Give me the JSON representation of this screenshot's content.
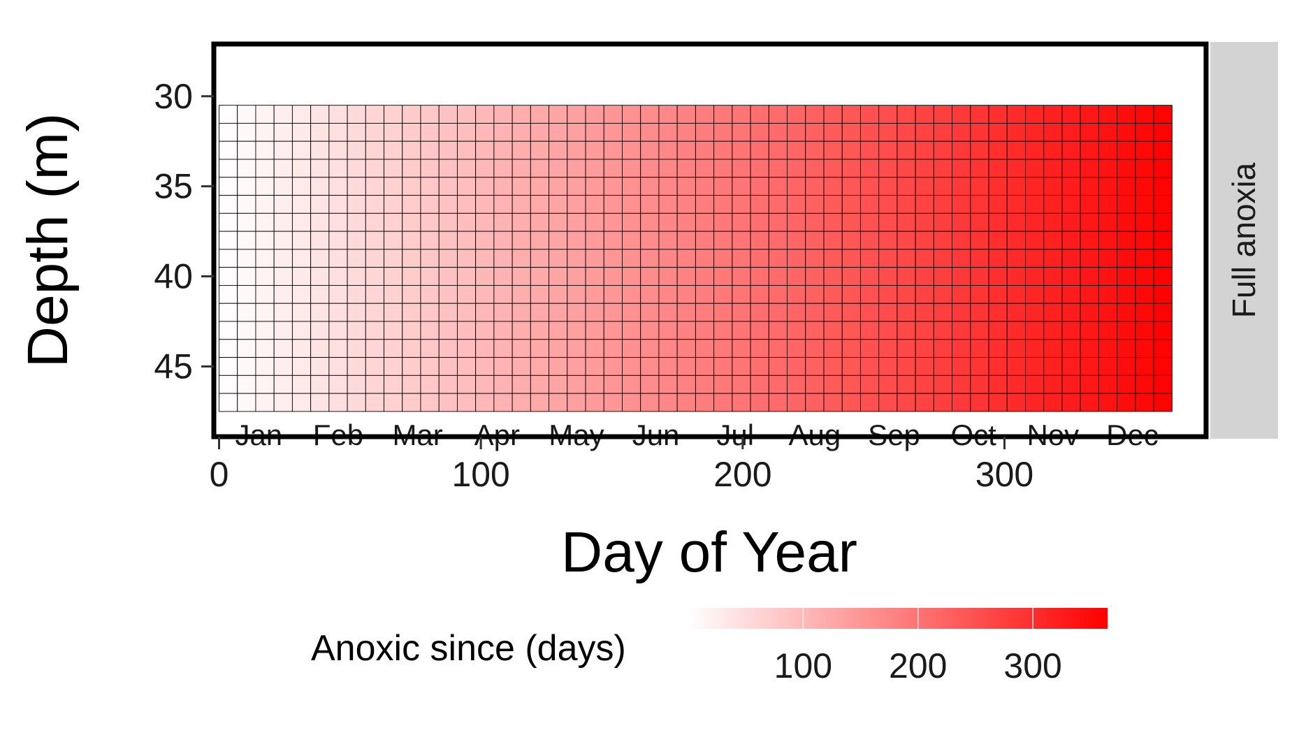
{
  "chart_data": {
    "type": "heatmap",
    "title": "",
    "xlabel": "Day of Year",
    "ylabel": "Depth (m)",
    "facet_label": "Full anoxia",
    "x_ticks": [
      0,
      100,
      200,
      300
    ],
    "xlim": [
      -2,
      377
    ],
    "y_ticks": [
      30,
      35,
      40,
      45
    ],
    "ylim": [
      27.1,
      48.9
    ],
    "y_reversed": true,
    "month_labels": [
      "Jan",
      "Feb",
      "Mar",
      "Apr",
      "May",
      "Jun",
      "Jul",
      "Aug",
      "Sep",
      "Oct",
      "Nov",
      "Dec"
    ],
    "grid": {
      "day_start": 0,
      "day_step": 7,
      "day_count": 52,
      "depth_start": 30.5,
      "depth_step": 1,
      "depth_count": 17,
      "value": "days since day 0 (constant with depth)"
    },
    "colorbar": {
      "title": "Anoxic since (days)",
      "ticks": [
        100,
        200,
        300
      ],
      "range": [
        0,
        365
      ],
      "low_color": "#ffffff",
      "high_color": "#ff0000"
    },
    "colors": {
      "facet_strip": "#d3d3d3",
      "cell_border": "#000000",
      "panel_border": "#000000"
    }
  }
}
